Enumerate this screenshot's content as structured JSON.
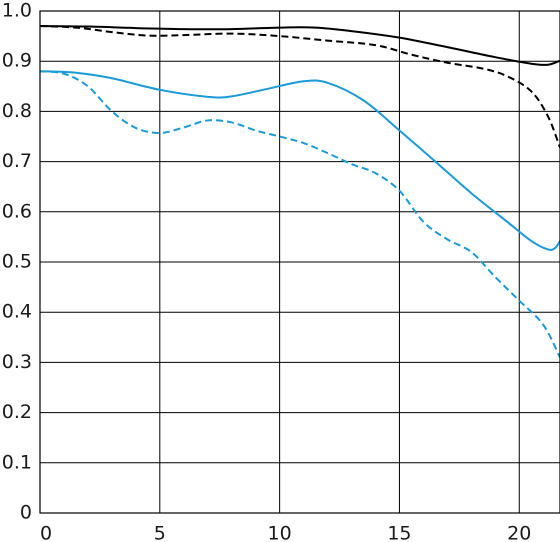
{
  "chart_data": {
    "type": "line",
    "title": "",
    "xlabel": "",
    "ylabel": "",
    "xlim": [
      0,
      21.7
    ],
    "ylim": [
      0,
      1.0
    ],
    "x_ticks": [
      0,
      5,
      10,
      15,
      20
    ],
    "y_ticks": [
      0,
      0.1,
      0.2,
      0.3,
      0.4,
      0.5,
      0.6,
      0.7,
      0.8,
      0.9,
      1.0
    ],
    "x_tick_labels": [
      "0",
      "5",
      "10",
      "15",
      "20"
    ],
    "y_tick_labels": [
      "0",
      "0.1",
      "0.2",
      "0.3",
      "0.4",
      "0.5",
      "0.6",
      "0.7",
      "0.8",
      "0.9",
      "1.0"
    ],
    "grid": true,
    "legend": "none",
    "series": [
      {
        "color": "#000000",
        "style": "solid",
        "points": [
          [
            0,
            0.97
          ],
          [
            2,
            0.969
          ],
          [
            4,
            0.966
          ],
          [
            6,
            0.964
          ],
          [
            8,
            0.964
          ],
          [
            10,
            0.967
          ],
          [
            11.5,
            0.967
          ],
          [
            13,
            0.96
          ],
          [
            15,
            0.947
          ],
          [
            17,
            0.928
          ],
          [
            19,
            0.908
          ],
          [
            20.5,
            0.895
          ],
          [
            21.2,
            0.893
          ],
          [
            21.7,
            0.901
          ]
        ]
      },
      {
        "color": "#000000",
        "style": "dashed",
        "points": [
          [
            0,
            0.97
          ],
          [
            1.5,
            0.967
          ],
          [
            3,
            0.958
          ],
          [
            4.5,
            0.951
          ],
          [
            6,
            0.952
          ],
          [
            8,
            0.955
          ],
          [
            10,
            0.95
          ],
          [
            12,
            0.941
          ],
          [
            14,
            0.932
          ],
          [
            15.5,
            0.913
          ],
          [
            17,
            0.897
          ],
          [
            18.5,
            0.885
          ],
          [
            19.5,
            0.87
          ],
          [
            20.5,
            0.84
          ],
          [
            21.2,
            0.79
          ],
          [
            21.7,
            0.728
          ]
        ]
      },
      {
        "color": "#1a9ad7",
        "style": "solid",
        "points": [
          [
            0,
            0.88
          ],
          [
            1.5,
            0.877
          ],
          [
            3,
            0.866
          ],
          [
            5,
            0.843
          ],
          [
            7,
            0.829
          ],
          [
            8,
            0.83
          ],
          [
            9.5,
            0.845
          ],
          [
            11,
            0.86
          ],
          [
            12,
            0.857
          ],
          [
            13.5,
            0.822
          ],
          [
            15,
            0.762
          ],
          [
            16.5,
            0.7
          ],
          [
            18,
            0.637
          ],
          [
            19.5,
            0.58
          ],
          [
            20.5,
            0.542
          ],
          [
            21.2,
            0.525
          ],
          [
            21.5,
            0.528
          ],
          [
            21.7,
            0.542
          ]
        ]
      },
      {
        "color": "#1a9ad7",
        "style": "dashed",
        "points": [
          [
            0,
            0.88
          ],
          [
            1,
            0.875
          ],
          [
            2,
            0.85
          ],
          [
            3,
            0.8
          ],
          [
            4,
            0.767
          ],
          [
            5,
            0.757
          ],
          [
            6,
            0.768
          ],
          [
            7,
            0.782
          ],
          [
            8,
            0.778
          ],
          [
            9,
            0.762
          ],
          [
            10,
            0.75
          ],
          [
            11,
            0.737
          ],
          [
            12,
            0.717
          ],
          [
            13,
            0.695
          ],
          [
            14,
            0.677
          ],
          [
            15,
            0.642
          ],
          [
            16,
            0.58
          ],
          [
            17,
            0.545
          ],
          [
            18,
            0.52
          ],
          [
            19,
            0.47
          ],
          [
            20,
            0.423
          ],
          [
            21,
            0.375
          ],
          [
            21.7,
            0.31
          ]
        ]
      }
    ]
  }
}
